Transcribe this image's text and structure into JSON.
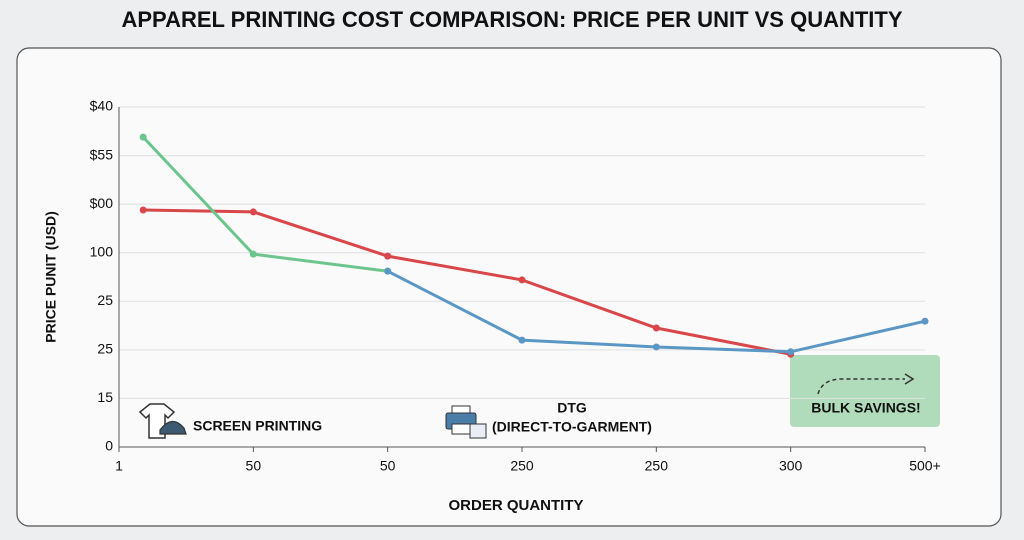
{
  "chart_data": {
    "type": "line",
    "title": "APPAREL PRINTING COST COMPARISON: PRICE PER UNIT VS QUANTITY",
    "x_label": "ORDER QUANTITY",
    "y_label": "PRICE PUNIT (USD)",
    "xlim": [
      0,
      6
    ],
    "xticks": [
      {
        "value": 0,
        "label": "1"
      },
      {
        "value": 1,
        "label": "50"
      },
      {
        "value": 2,
        "label": "50"
      },
      {
        "value": 3,
        "label": "250"
      },
      {
        "value": 4,
        "label": "250"
      },
      {
        "value": 5,
        "label": "300"
      },
      {
        "value": 6,
        "label": "500+"
      }
    ],
    "ylim": [
      0,
      7
    ],
    "yticks": [
      {
        "value": 0,
        "label": "0"
      },
      {
        "value": 1,
        "label": "15"
      },
      {
        "value": 2,
        "label": "25"
      },
      {
        "value": 3,
        "label": "25"
      },
      {
        "value": 4,
        "label": "100"
      },
      {
        "value": 5,
        "label": "$00"
      },
      {
        "value": 6,
        "label": "$55"
      },
      {
        "value": 7,
        "label": "$40"
      }
    ],
    "grid": true,
    "series": [
      {
        "color": "#d9474a",
        "x": [
          0.18,
          1,
          2,
          3,
          4,
          5
        ],
        "values": [
          4.88,
          4.84,
          3.93,
          3.44,
          2.45,
          1.91
        ]
      },
      {
        "color": "#6cc58c",
        "x": [
          0.18,
          1,
          2
        ],
        "values": [
          6.38,
          3.97,
          3.62
        ]
      },
      {
        "color": "#5b97c4",
        "x": [
          2,
          3,
          4,
          5,
          6
        ],
        "values": [
          3.62,
          2.2,
          2.06,
          1.96,
          2.59
        ]
      }
    ],
    "annotations": [
      "SCREEN PRINTING",
      "DTG",
      "(DIRECT-TO-GARMENT)",
      "BULK SAVINGS!"
    ]
  }
}
